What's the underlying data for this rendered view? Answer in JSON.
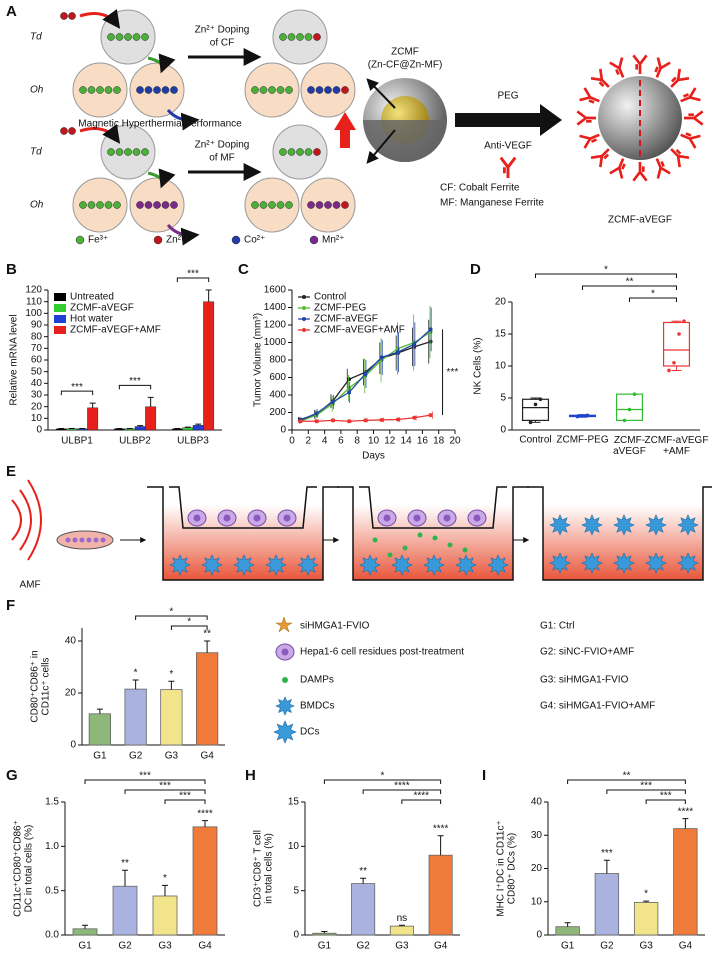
{
  "panel_labels": [
    "A",
    "B",
    "C",
    "D",
    "E",
    "F",
    "G",
    "H",
    "I"
  ],
  "scheme": {
    "sites": [
      "Td",
      "Oh"
    ],
    "doping_cf": [
      "Zn²⁺ Doping",
      "of CF"
    ],
    "doping_mf": [
      "Zn²⁺ Doping",
      "of MF"
    ],
    "hyperthermia": "Magnetic Hyperthermia Performance",
    "zcmf": [
      "ZCMF",
      "(Zn-CF@Zn-MF)"
    ],
    "peg": "PEG",
    "anti_vegf": "Anti-VEGF",
    "notes": [
      "CF: Cobalt Ferrite",
      "MF: Manganese Ferrite"
    ],
    "product": "ZCMF-aVEGF",
    "ions": [
      {
        "name": "Fe³⁺",
        "color": "#4caf3a"
      },
      {
        "name": "Zn²⁺",
        "color": "#c0171f"
      },
      {
        "name": "Co²⁺",
        "color": "#1f3ca8"
      },
      {
        "name": "Mn²⁺",
        "color": "#7a2a8a"
      }
    ]
  },
  "workflow": {
    "amf": "AMF"
  },
  "legend_f": {
    "items": [
      "siHMGA1-FVIO",
      "Hepa1-6 cell residues post-treatment",
      "DAMPs",
      "BMDCs",
      "DCs"
    ],
    "groups": [
      "G1: Ctrl",
      "G2: siNC-FVIO+AMF",
      "G3: siHMGA1-FVIO",
      "G4: siHMGA1-FVIO+AMF"
    ]
  },
  "chart_data": [
    {
      "type": "grouped_bar",
      "ylabel": "Relative mRNA level",
      "categories": [
        "ULBP1",
        "ULBP2",
        "ULBP3"
      ],
      "series": [
        {
          "name": "Untreated",
          "color": "#000000",
          "values": [
            1,
            1,
            1
          ],
          "errors": [
            0.3,
            0.3,
            0.3
          ]
        },
        {
          "name": "ZCMF-aVEGF",
          "color": "#33cc33",
          "values": [
            1,
            1,
            2
          ],
          "errors": [
            0.3,
            0.3,
            0.5
          ]
        },
        {
          "name": "Hot water",
          "color": "#1f3fd6",
          "values": [
            1,
            3,
            4
          ],
          "errors": [
            0.3,
            0.8,
            1
          ]
        },
        {
          "name": "ZCMF-aVEGF+AMF",
          "color": "#e8201c",
          "values": [
            19,
            20,
            110
          ],
          "errors": [
            4,
            8,
            10
          ]
        }
      ],
      "ylim": [
        0,
        120
      ],
      "yticks": [
        0,
        10,
        20,
        30,
        40,
        50,
        60,
        70,
        80,
        90,
        100,
        110,
        120
      ],
      "comparisons": [
        {
          "category": "ULBP1",
          "text": "***"
        },
        {
          "category": "ULBP2",
          "text": "***"
        },
        {
          "category": "ULBP3",
          "text": "***"
        }
      ],
      "legend": "upper left"
    },
    {
      "type": "line",
      "xlabel": "Days",
      "ylabel": "Tumor Volume (mm³)",
      "x": [
        1,
        3,
        5,
        7,
        9,
        11,
        13,
        15,
        17
      ],
      "xlim": [
        0,
        20
      ],
      "xticks": [
        0,
        2,
        4,
        6,
        8,
        10,
        12,
        14,
        16,
        18,
        20
      ],
      "ylim": [
        0,
        1600
      ],
      "yticks": [
        0,
        200,
        400,
        600,
        800,
        1000,
        1200,
        1400,
        1600
      ],
      "series": [
        {
          "name": "Control",
          "color": "#222222",
          "values": [
            120,
            180,
            330,
            580,
            660,
            820,
            880,
            950,
            1010
          ],
          "errors": [
            30,
            50,
            80,
            120,
            150,
            180,
            200,
            220,
            250
          ]
        },
        {
          "name": "ZCMF-PEG",
          "color": "#55bb33",
          "values": [
            100,
            170,
            300,
            480,
            620,
            800,
            930,
            1000,
            1120
          ],
          "errors": [
            30,
            60,
            90,
            150,
            200,
            250,
            300,
            320,
            300
          ]
        },
        {
          "name": "ZCMF-aVEGF",
          "color": "#2244aa",
          "values": [
            110,
            190,
            320,
            430,
            640,
            830,
            890,
            980,
            1150
          ],
          "errors": [
            30,
            50,
            80,
            120,
            160,
            200,
            230,
            250,
            250
          ]
        },
        {
          "name": "ZCMF-aVEGF+AMF",
          "color": "#ee3333",
          "values": [
            100,
            100,
            110,
            100,
            110,
            115,
            120,
            140,
            170
          ],
          "errors": [
            20,
            20,
            20,
            20,
            25,
            25,
            25,
            30,
            40
          ]
        }
      ],
      "significance": "***",
      "legend": "upper left"
    },
    {
      "type": "box",
      "ylabel": "NK Cells (%)",
      "categories": [
        "Control",
        "ZCMF-PEG",
        "ZCMF-\naVEGF",
        "ZCMF-aVEGF\n+AMF"
      ],
      "colors": [
        "#222222",
        "#2244cc",
        "#33bb33",
        "#ee3333"
      ],
      "boxes": [
        {
          "min": 1.2,
          "q1": 1.5,
          "median": 3.5,
          "q3": 4.8,
          "max": 5.0,
          "points": [
            1.2,
            4.0,
            4.8
          ]
        },
        {
          "min": 2.0,
          "q1": 2.1,
          "median": 2.2,
          "q3": 2.3,
          "max": 2.4,
          "points": [
            2.1,
            2.2,
            2.3
          ]
        },
        {
          "min": 1.5,
          "q1": 1.5,
          "median": 3.2,
          "q3": 5.6,
          "max": 5.6,
          "points": [
            1.5,
            3.2,
            5.6
          ]
        },
        {
          "min": 9.3,
          "q1": 10,
          "median": 12.5,
          "q3": 16.8,
          "max": 17,
          "points": [
            9.3,
            10.5,
            15,
            17
          ]
        }
      ],
      "ylim": [
        0,
        20
      ],
      "yticks": [
        0,
        5,
        10,
        15,
        20
      ],
      "comparisons": [
        {
          "from": "Control",
          "to": "ZCMF-aVEGF\n+AMF",
          "text": "*"
        },
        {
          "from": "ZCMF-PEG",
          "to": "ZCMF-aVEGF\n+AMF",
          "text": "**"
        },
        {
          "from": "ZCMF-\naVEGF",
          "to": "ZCMF-aVEGF\n+AMF",
          "text": "*"
        }
      ]
    },
    {
      "type": "bar",
      "ylabel": "CD80⁺CD86⁺ in\nCD11c⁺ cells",
      "categories": [
        "G1",
        "G2",
        "G3",
        "G4"
      ],
      "values": [
        12,
        21.5,
        21.3,
        35.5
      ],
      "errors": [
        1.8,
        3.5,
        3.2,
        4.5
      ],
      "colors": [
        "#8db87a",
        "#aab3e0",
        "#f2e48a",
        "#f07a3a"
      ],
      "annotations": [
        null,
        "*",
        "*",
        "**"
      ],
      "comparisons": [
        {
          "from": "G2",
          "to": "G4",
          "text": "*"
        },
        {
          "from": "G3",
          "to": "G4",
          "text": "*"
        }
      ],
      "ylim": [
        0,
        45
      ],
      "yticks": [
        0,
        20,
        40
      ]
    },
    {
      "type": "bar",
      "ylabel": "CD11c⁺CD80⁺CD86⁺\nDC in total cells (%)",
      "categories": [
        "G1",
        "G2",
        "G3",
        "G4"
      ],
      "values": [
        0.07,
        0.55,
        0.44,
        1.22
      ],
      "errors": [
        0.04,
        0.18,
        0.12,
        0.07
      ],
      "colors": [
        "#8db87a",
        "#aab3e0",
        "#f2e48a",
        "#f07a3a"
      ],
      "annotations": [
        null,
        "**",
        "*",
        "****"
      ],
      "comparisons": [
        {
          "from": "G1",
          "to": "G4",
          "text": "***"
        },
        {
          "from": "G2",
          "to": "G4",
          "text": "***"
        },
        {
          "from": "G3",
          "to": "G4",
          "text": "***"
        }
      ],
      "ylim": [
        0,
        1.5
      ],
      "yticks": [
        {
          "value": 0,
          "label": "0.0"
        },
        0.5,
        {
          "value": 1,
          "label": "1.0"
        },
        1.5
      ]
    },
    {
      "type": "bar",
      "ylabel": "CD3⁺CD8⁺ T cell\nin total cells (%)",
      "categories": [
        "G1",
        "G2",
        "G3",
        "G4"
      ],
      "values": [
        0.2,
        5.8,
        1.0,
        9.0
      ],
      "errors": [
        0.2,
        0.6,
        0.1,
        2.2
      ],
      "colors": [
        "#8db87a",
        "#aab3e0",
        "#f2e48a",
        "#f07a3a"
      ],
      "annotations": [
        null,
        "**",
        "ns",
        "****"
      ],
      "comparisons": [
        {
          "from": "G1",
          "to": "G4",
          "text": "*"
        },
        {
          "from": "G2",
          "to": "G4",
          "text": "****"
        },
        {
          "from": "G3",
          "to": "G4",
          "text": "****"
        }
      ],
      "ylim": [
        0,
        15
      ],
      "yticks": [
        0,
        5,
        10,
        15
      ]
    },
    {
      "type": "bar",
      "ylabel": "MHC I⁺DC in CD11c⁺\nCD80⁺ DCs (%)",
      "categories": [
        "G1",
        "G2",
        "G3",
        "G4"
      ],
      "values": [
        2.5,
        18.5,
        9.8,
        32
      ],
      "errors": [
        1.2,
        4,
        0.4,
        3
      ],
      "colors": [
        "#8db87a",
        "#aab3e0",
        "#f2e48a",
        "#f07a3a"
      ],
      "annotations": [
        null,
        "***",
        "*",
        "****"
      ],
      "comparisons": [
        {
          "from": "G1",
          "to": "G4",
          "text": "**"
        },
        {
          "from": "G2",
          "to": "G4",
          "text": "***"
        },
        {
          "from": "G3",
          "to": "G4",
          "text": "***"
        }
      ],
      "ylim": [
        0,
        40
      ],
      "yticks": [
        0,
        10,
        20,
        30,
        40
      ]
    }
  ]
}
